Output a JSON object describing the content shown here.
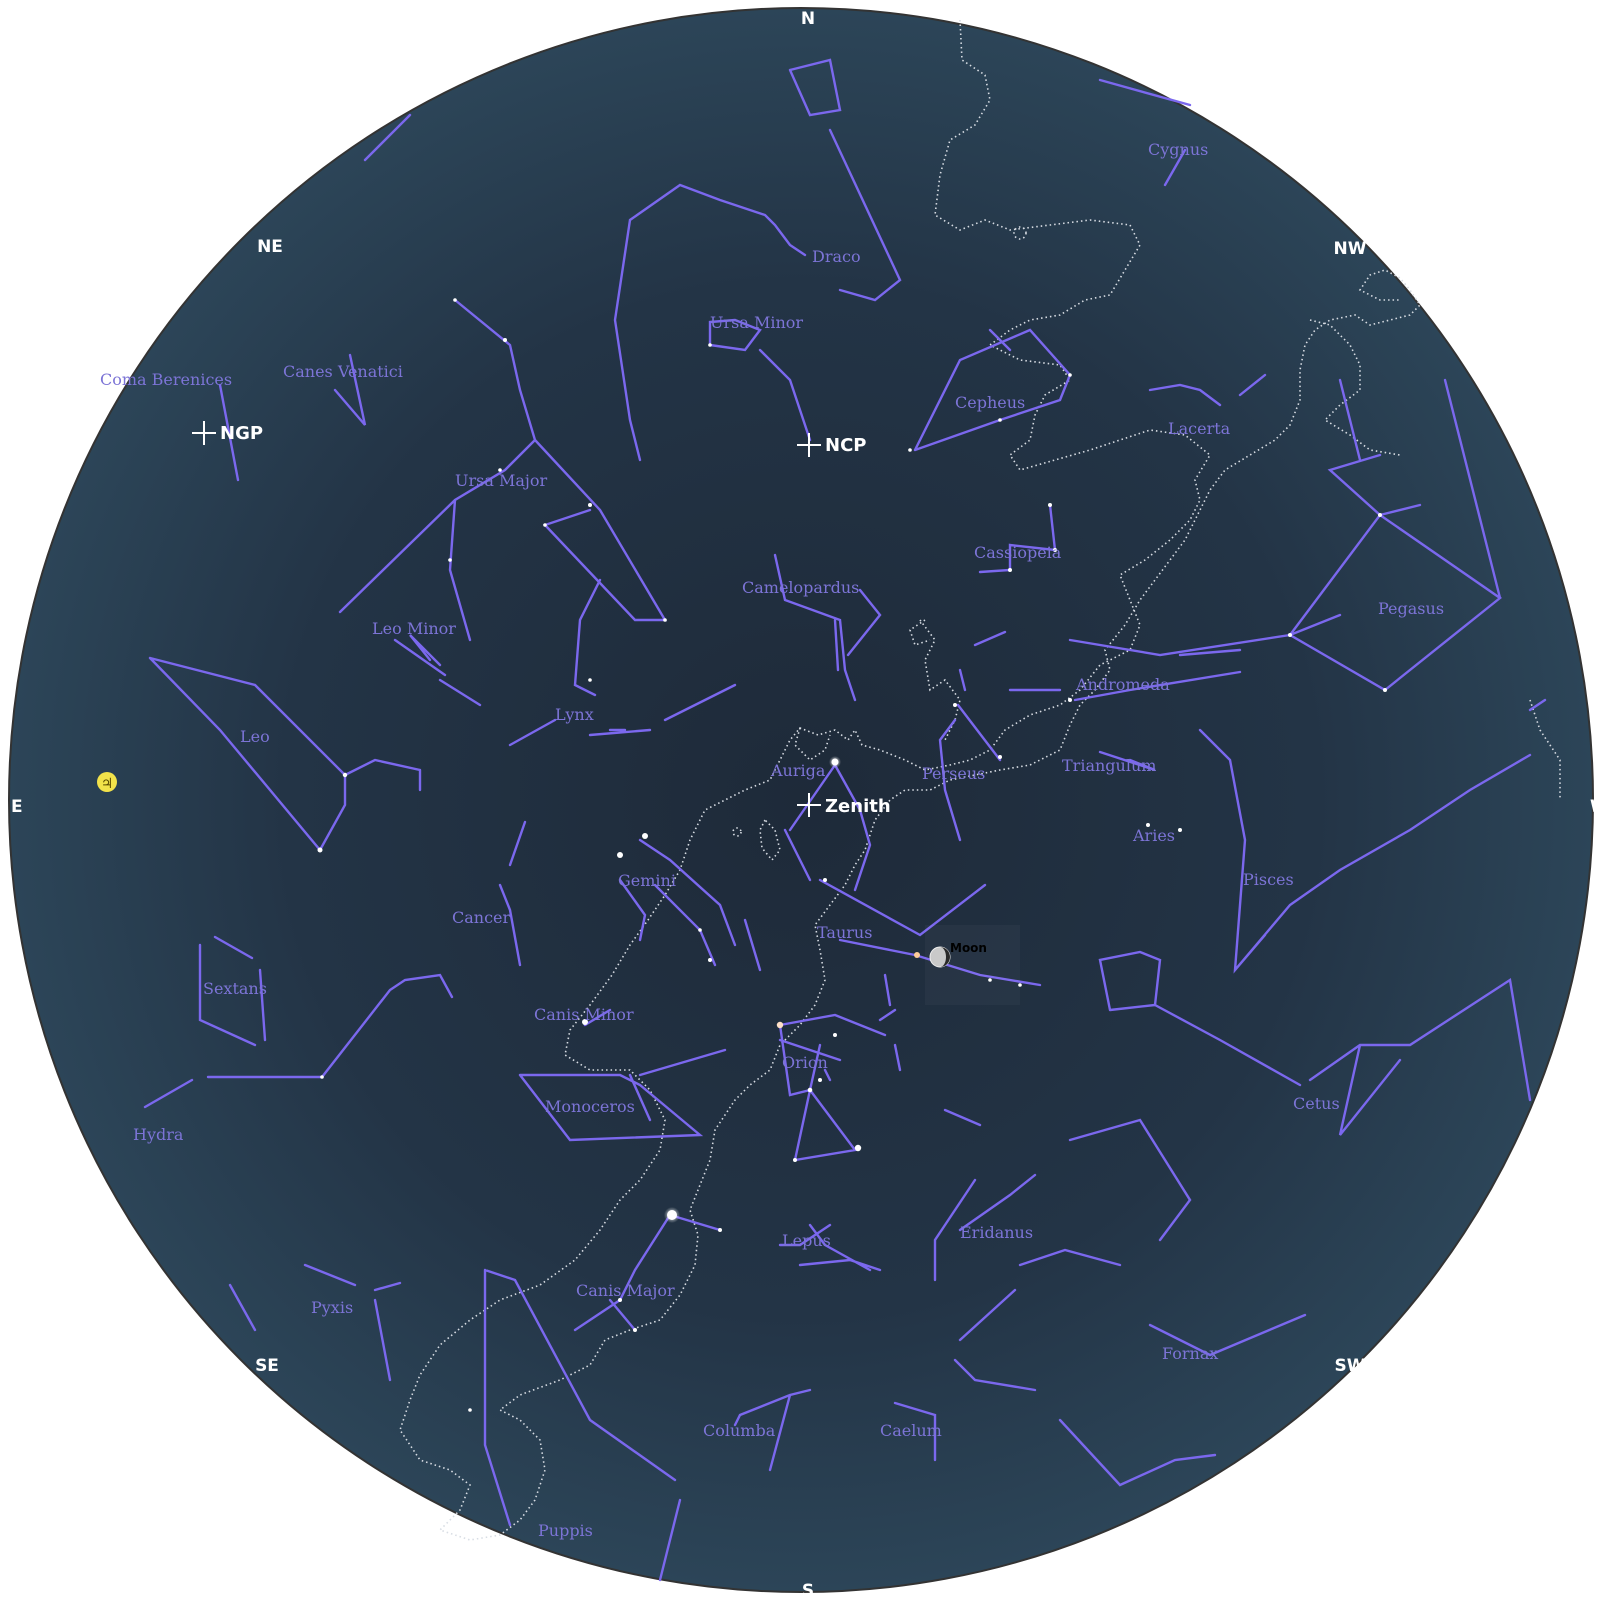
{
  "directions": {
    "north": "N",
    "northeast": "NE",
    "east": "E",
    "southeast": "SE",
    "south": "S",
    "southwest": "SW",
    "west": "W",
    "northwest": "NW"
  },
  "poles": {
    "ngp": "NGP",
    "ncp": "NCP",
    "zenith": "Zenith"
  },
  "moon": {
    "label": "Moon"
  },
  "planet": {
    "glyph": "♃",
    "icon": "jupiter-icon"
  },
  "constellations": {
    "cygnus": "Cygnus",
    "draco": "Draco",
    "ursa_minor": "Ursa Minor",
    "cepheus": "Cepheus",
    "lacerta": "Lacerta",
    "coma_berenices": "Coma Berenices",
    "canes_venatici": "Canes Venatici",
    "ursa_major": "Ursa Major",
    "cassiopeia": "Cassiopeia",
    "camelopardus": "Camelopardus",
    "pegasus": "Pegasus",
    "leo_minor": "Leo Minor",
    "andromeda": "Andromeda",
    "lynx": "Lynx",
    "leo": "Leo",
    "auriga": "Auriga",
    "perseus": "Perseus",
    "triangulum": "Triangulum",
    "aries": "Aries",
    "gemini": "Gemini",
    "pisces": "Pisces",
    "cancer": "Cancer",
    "taurus": "Taurus",
    "sextans": "Sextans",
    "canis_minor": "Canis Minor",
    "orion": "Orion",
    "monoceros": "Monoceros",
    "cetus": "Cetus",
    "hydra": "Hydra",
    "eridanus": "Eridanus",
    "lepus": "Lepus",
    "canis_major": "Canis Major",
    "pyxis": "Pyxis",
    "fornax": "Fornax",
    "columba": "Columba",
    "caelum": "Caelum",
    "puppis": "Puppis"
  },
  "colors": {
    "sky_center": "#1e2b3a",
    "sky_edge": "#2c4457",
    "constellation_lines": "#7b68ee",
    "constellation_labels": "#7c74d6",
    "milky_way_outline": "#d8dde4",
    "markers": "#ffffff",
    "jupiter": "#f2e24a"
  }
}
